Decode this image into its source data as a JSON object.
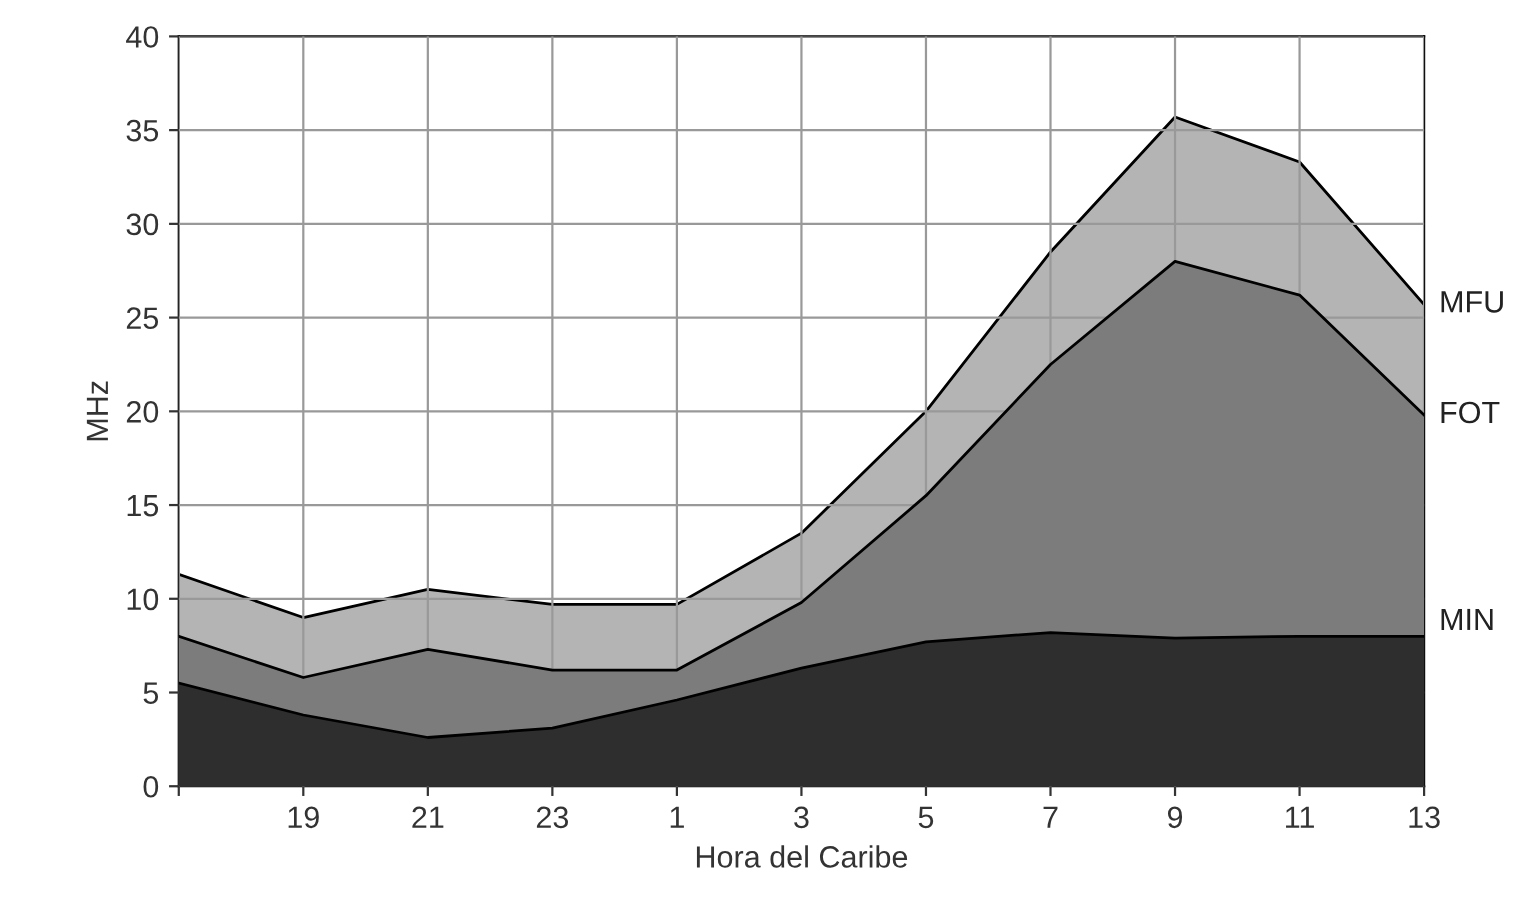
{
  "chart_data": {
    "type": "area",
    "xlabel": "Hora del Caribe",
    "ylabel": "MHz",
    "categories": [
      null,
      "19",
      "21",
      "23",
      "1",
      "3",
      "5",
      "7",
      "9",
      "11",
      "13"
    ],
    "series": [
      {
        "name": "MFU",
        "color": "#b4b4b4",
        "values": [
          11.3,
          9,
          10.5,
          9.7,
          9.7,
          13.5,
          20,
          28.5,
          35.7,
          33.3,
          25.7
        ]
      },
      {
        "name": "FOT",
        "color": "#7c7c7c",
        "values": [
          8,
          5.8,
          7.3,
          6.2,
          6.2,
          9.8,
          15.5,
          22.5,
          28,
          26.2,
          19.8
        ]
      },
      {
        "name": "MIN",
        "color": "#2e2e2e",
        "values": [
          5.5,
          3.8,
          2.6,
          3.1,
          4.6,
          6.3,
          7.7,
          8.2,
          7.9,
          8,
          8
        ]
      }
    ],
    "ylim": [
      0,
      40
    ],
    "yticks": [
      0,
      5,
      10,
      15,
      20,
      25,
      30,
      35,
      40
    ],
    "grid": true
  }
}
